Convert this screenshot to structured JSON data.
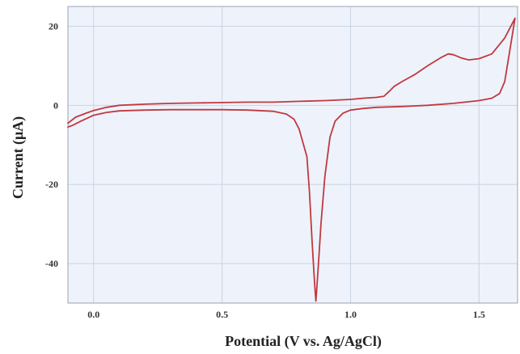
{
  "chart_data": {
    "type": "line",
    "title": "",
    "xlabel": "Potential (V vs. Ag/AgCl)",
    "ylabel": "Current (μA)",
    "xlim": [
      -0.1,
      1.65
    ],
    "ylim": [
      -50,
      25
    ],
    "grid": true,
    "x_ticks": [
      {
        "value": 0.0,
        "label": "0.0"
      },
      {
        "value": 0.5,
        "label": "0.5"
      },
      {
        "value": 1.0,
        "label": "1.0"
      },
      {
        "value": 1.5,
        "label": "1.5"
      }
    ],
    "y_ticks": [
      {
        "value": 20,
        "label": "20"
      },
      {
        "value": 0,
        "label": "0"
      },
      {
        "value": -20,
        "label": "-20"
      },
      {
        "value": -40,
        "label": "-40"
      }
    ],
    "line_color": "#c0393f",
    "plot_background": "#eef2fb",
    "series": [
      {
        "points": [
          [
            -0.1,
            -4.5
          ],
          [
            -0.07,
            -3.0
          ],
          [
            -0.03,
            -2.0
          ],
          [
            0.0,
            -1.3
          ],
          [
            0.05,
            -0.5
          ],
          [
            0.1,
            0.0
          ],
          [
            0.2,
            0.3
          ],
          [
            0.3,
            0.5
          ],
          [
            0.4,
            0.6
          ],
          [
            0.5,
            0.7
          ],
          [
            0.6,
            0.8
          ],
          [
            0.7,
            0.8
          ],
          [
            0.8,
            1.0
          ],
          [
            0.9,
            1.2
          ],
          [
            1.0,
            1.5
          ],
          [
            1.05,
            1.8
          ],
          [
            1.1,
            2.0
          ],
          [
            1.13,
            2.3
          ],
          [
            1.15,
            3.5
          ],
          [
            1.17,
            4.8
          ],
          [
            1.2,
            6.0
          ],
          [
            1.25,
            7.8
          ],
          [
            1.3,
            10.0
          ],
          [
            1.35,
            12.0
          ],
          [
            1.38,
            13.0
          ],
          [
            1.4,
            12.8
          ],
          [
            1.43,
            12.0
          ],
          [
            1.46,
            11.5
          ],
          [
            1.5,
            11.8
          ],
          [
            1.55,
            13.0
          ],
          [
            1.6,
            17.0
          ],
          [
            1.64,
            22.0
          ]
        ]
      },
      {
        "points": [
          [
            1.64,
            22.0
          ],
          [
            1.62,
            14.0
          ],
          [
            1.6,
            6.0
          ],
          [
            1.58,
            3.0
          ],
          [
            1.55,
            1.8
          ],
          [
            1.5,
            1.2
          ],
          [
            1.4,
            0.5
          ],
          [
            1.3,
            0.0
          ],
          [
            1.2,
            -0.3
          ],
          [
            1.1,
            -0.5
          ],
          [
            1.05,
            -0.8
          ],
          [
            1.0,
            -1.2
          ],
          [
            0.97,
            -2.0
          ],
          [
            0.94,
            -4.0
          ],
          [
            0.92,
            -8.0
          ],
          [
            0.9,
            -18.0
          ],
          [
            0.885,
            -30.0
          ],
          [
            0.875,
            -40.0
          ],
          [
            0.868,
            -47.0
          ],
          [
            0.865,
            -49.5
          ],
          [
            0.86,
            -45.0
          ],
          [
            0.85,
            -34.0
          ],
          [
            0.84,
            -22.0
          ],
          [
            0.83,
            -13.0
          ],
          [
            0.8,
            -6.0
          ],
          [
            0.78,
            -3.5
          ],
          [
            0.75,
            -2.2
          ],
          [
            0.7,
            -1.5
          ],
          [
            0.6,
            -1.2
          ],
          [
            0.5,
            -1.1
          ],
          [
            0.4,
            -1.1
          ],
          [
            0.3,
            -1.1
          ],
          [
            0.2,
            -1.2
          ],
          [
            0.1,
            -1.4
          ],
          [
            0.05,
            -1.8
          ],
          [
            0.0,
            -2.5
          ],
          [
            -0.05,
            -4.0
          ],
          [
            -0.08,
            -5.0
          ],
          [
            -0.1,
            -5.5
          ]
        ]
      }
    ]
  }
}
